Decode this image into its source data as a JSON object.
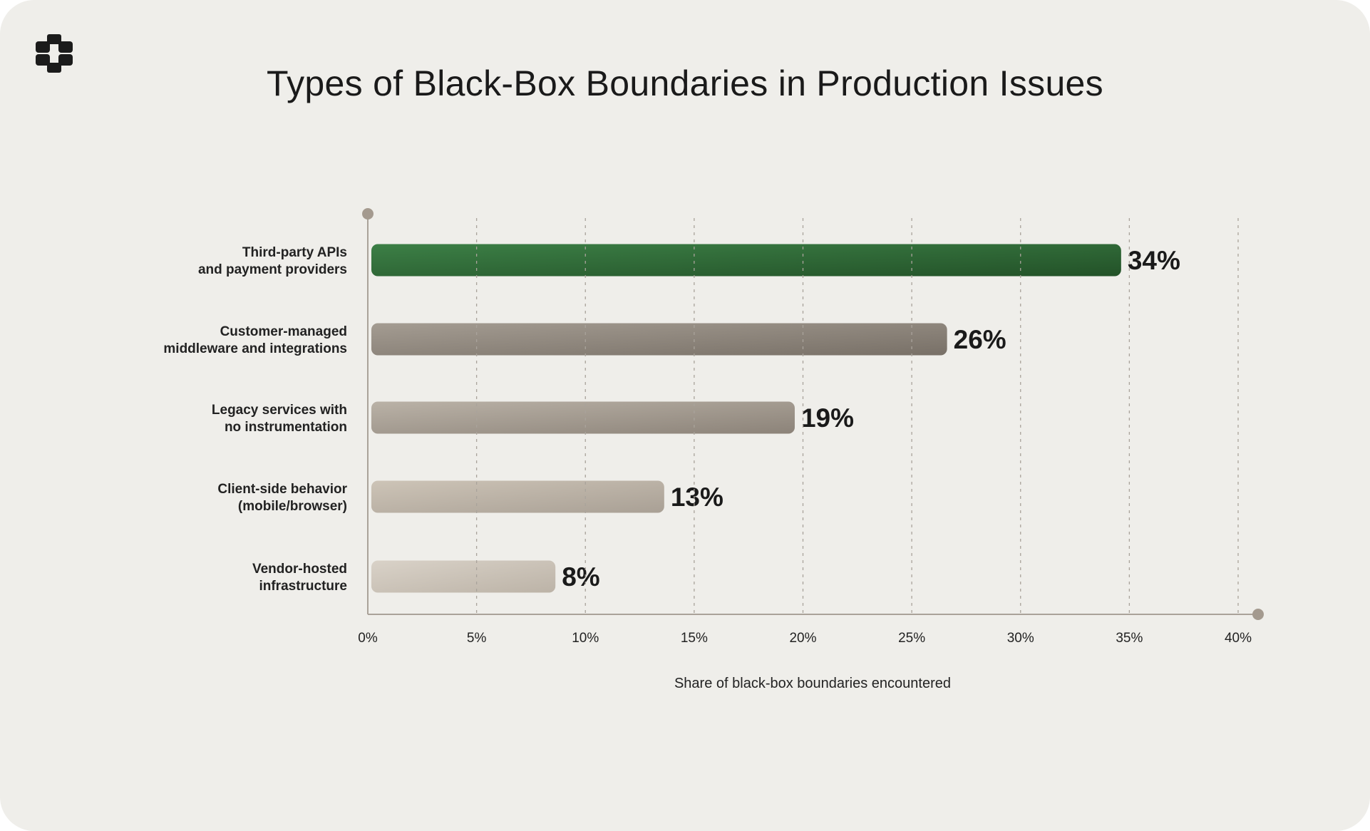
{
  "chart_data": {
    "type": "bar",
    "orientation": "horizontal",
    "title": "Types of Black-Box Boundaries in Production Issues",
    "xlabel": "Share of black-box boundaries encountered",
    "ylabel": "",
    "categories": [
      [
        "Third-party APIs",
        "and payment providers"
      ],
      [
        "Customer-managed",
        "middleware and integrations"
      ],
      [
        "Legacy services with",
        "no instrumentation"
      ],
      [
        "Client-side behavior",
        "(mobile/browser)"
      ],
      [
        "Vendor-hosted",
        "infrastructure"
      ]
    ],
    "values": [
      34,
      26,
      19,
      13,
      8
    ],
    "value_labels": [
      "34%",
      "26%",
      "19%",
      "13%",
      "8%"
    ],
    "xlim": [
      0,
      40
    ],
    "xticks": [
      0,
      5,
      10,
      15,
      20,
      25,
      30,
      35,
      40
    ],
    "xtick_labels": [
      "0%",
      "5%",
      "10%",
      "15%",
      "20%",
      "25%",
      "30%",
      "35%",
      "40%"
    ],
    "grid": true,
    "bar_colors": [
      [
        "#3c7f46",
        "#235228"
      ],
      [
        "#a49c92",
        "#787067"
      ],
      [
        "#bab2a7",
        "#8c8379"
      ],
      [
        "#cdc4b7",
        "#a9a095"
      ],
      [
        "#d9d2c8",
        "#bcb3a7"
      ]
    ]
  }
}
